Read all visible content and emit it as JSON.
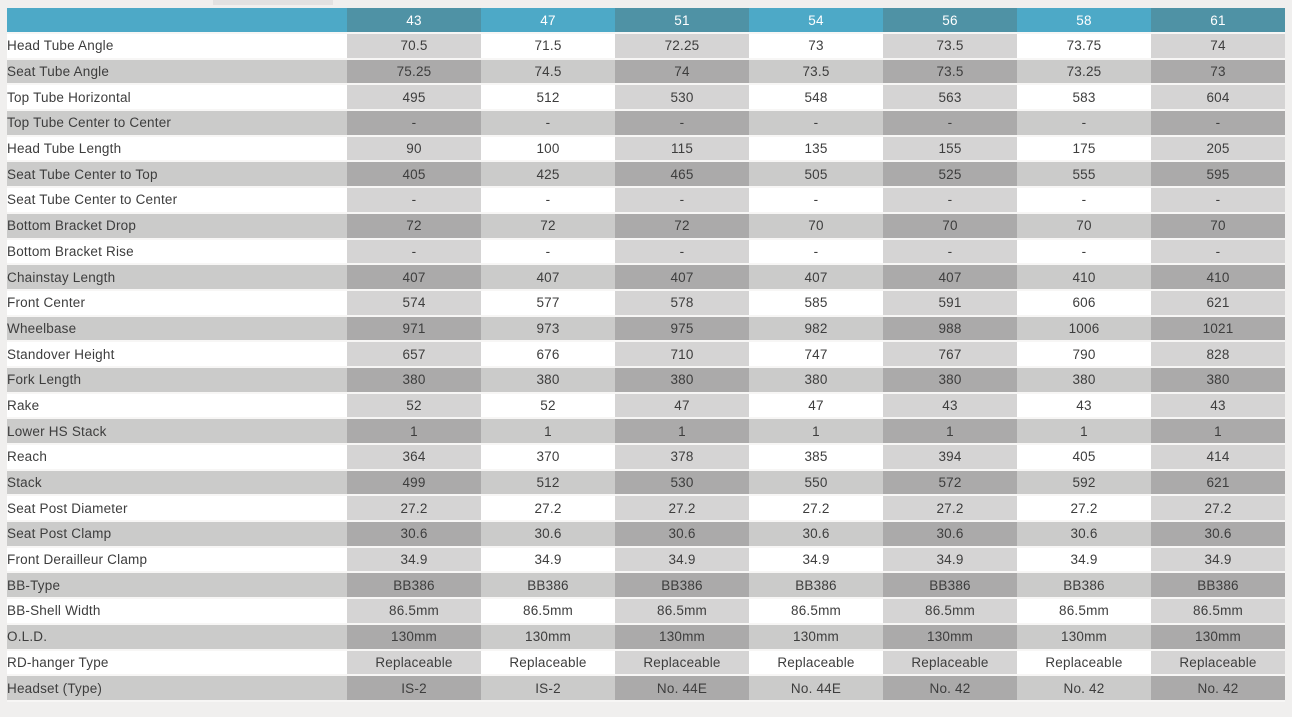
{
  "page": {
    "background": "#f0efee",
    "top_tab_color": "#e2e1e1"
  },
  "colors": {
    "header_teal_light": "#4da9c7",
    "header_teal_dark": "#4f92a5",
    "header_text": "#ffffff",
    "row_white_label": "#ffffff",
    "row_white_col_dark": "#d5d4d4",
    "row_white_col_light": "#ffffff",
    "row_gray_label": "#cbcbca",
    "row_gray_col_dark": "#abaaaa",
    "row_gray_col_light": "#cbcbca",
    "separator": "#f7f6f5",
    "body_text": "#3d3d3d"
  },
  "chart_data": {
    "type": "table",
    "title": "Bicycle frame geometry specification table",
    "corner_label": "",
    "columns": [
      "43",
      "47",
      "51",
      "54",
      "56",
      "58",
      "61"
    ],
    "dark_header_columns": [
      "43",
      "51",
      "56",
      "61"
    ],
    "rows": [
      {
        "label": "Head Tube Angle",
        "values": [
          "70.5",
          "71.5",
          "72.25",
          "73",
          "73.5",
          "73.75",
          "74"
        ]
      },
      {
        "label": "Seat Tube Angle",
        "values": [
          "75.25",
          "74.5",
          "74",
          "73.5",
          "73.5",
          "73.25",
          "73"
        ]
      },
      {
        "label": "Top Tube Horizontal",
        "values": [
          "495",
          "512",
          "530",
          "548",
          "563",
          "583",
          "604"
        ]
      },
      {
        "label": "Top Tube Center to Center",
        "values": [
          "-",
          "-",
          "-",
          "-",
          "-",
          "-",
          "-"
        ]
      },
      {
        "label": "Head Tube Length",
        "values": [
          "90",
          "100",
          "115",
          "135",
          "155",
          "175",
          "205"
        ]
      },
      {
        "label": "Seat Tube Center to Top",
        "values": [
          "405",
          "425",
          "465",
          "505",
          "525",
          "555",
          "595"
        ]
      },
      {
        "label": "Seat Tube Center to Center",
        "values": [
          "-",
          "-",
          "-",
          "-",
          "-",
          "-",
          "-"
        ]
      },
      {
        "label": "Bottom Bracket Drop",
        "values": [
          "72",
          "72",
          "72",
          "70",
          "70",
          "70",
          "70"
        ]
      },
      {
        "label": "Bottom Bracket Rise",
        "values": [
          "-",
          "-",
          "-",
          "-",
          "-",
          "-",
          "-"
        ]
      },
      {
        "label": "Chainstay Length",
        "values": [
          "407",
          "407",
          "407",
          "407",
          "407",
          "410",
          "410"
        ]
      },
      {
        "label": "Front Center",
        "values": [
          "574",
          "577",
          "578",
          "585",
          "591",
          "606",
          "621"
        ]
      },
      {
        "label": "Wheelbase",
        "values": [
          "971",
          "973",
          "975",
          "982",
          "988",
          "1006",
          "1021"
        ]
      },
      {
        "label": "Standover Height",
        "values": [
          "657",
          "676",
          "710",
          "747",
          "767",
          "790",
          "828"
        ]
      },
      {
        "label": "Fork Length",
        "values": [
          "380",
          "380",
          "380",
          "380",
          "380",
          "380",
          "380"
        ]
      },
      {
        "label": "Rake",
        "values": [
          "52",
          "52",
          "47",
          "47",
          "43",
          "43",
          "43"
        ]
      },
      {
        "label": "Lower HS Stack",
        "values": [
          "1",
          "1",
          "1",
          "1",
          "1",
          "1",
          "1"
        ]
      },
      {
        "label": "Reach",
        "values": [
          "364",
          "370",
          "378",
          "385",
          "394",
          "405",
          "414"
        ]
      },
      {
        "label": "Stack",
        "values": [
          "499",
          "512",
          "530",
          "550",
          "572",
          "592",
          "621"
        ]
      },
      {
        "label": "Seat Post Diameter",
        "values": [
          "27.2",
          "27.2",
          "27.2",
          "27.2",
          "27.2",
          "27.2",
          "27.2"
        ]
      },
      {
        "label": "Seat Post Clamp",
        "values": [
          "30.6",
          "30.6",
          "30.6",
          "30.6",
          "30.6",
          "30.6",
          "30.6"
        ]
      },
      {
        "label": "Front Derailleur Clamp",
        "values": [
          "34.9",
          "34.9",
          "34.9",
          "34.9",
          "34.9",
          "34.9",
          "34.9"
        ]
      },
      {
        "label": "BB-Type",
        "values": [
          "BB386",
          "BB386",
          "BB386",
          "BB386",
          "BB386",
          "BB386",
          "BB386"
        ]
      },
      {
        "label": "BB-Shell Width",
        "values": [
          "86.5mm",
          "86.5mm",
          "86.5mm",
          "86.5mm",
          "86.5mm",
          "86.5mm",
          "86.5mm"
        ]
      },
      {
        "label": "O.L.D.",
        "values": [
          "130mm",
          "130mm",
          "130mm",
          "130mm",
          "130mm",
          "130mm",
          "130mm"
        ]
      },
      {
        "label": "RD-hanger Type",
        "values": [
          "Replaceable",
          "Replaceable",
          "Replaceable",
          "Replaceable",
          "Replaceable",
          "Replaceable",
          "Replaceable"
        ]
      },
      {
        "label": "Headset (Type)",
        "values": [
          "IS-2",
          "IS-2",
          "No. 44E",
          "No. 44E",
          "No. 42",
          "No. 42",
          "No. 42"
        ]
      }
    ]
  }
}
